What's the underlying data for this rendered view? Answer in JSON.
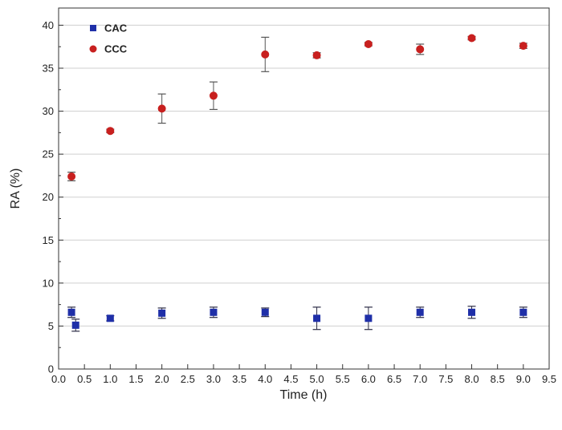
{
  "chart_data": {
    "type": "scatter",
    "xlabel": "Time (h)",
    "ylabel": "RA (%)",
    "xlim": [
      0.0,
      9.5
    ],
    "ylim": [
      0,
      42
    ],
    "x_ticks": [
      "0.0",
      "0.5",
      "1.0",
      "1.5",
      "2.0",
      "2.5",
      "3.0",
      "3.5",
      "4.0",
      "4.5",
      "5.0",
      "5.5",
      "6.0",
      "6.5",
      "7.0",
      "7.5",
      "8.0",
      "8.5",
      "9.0",
      "9.5"
    ],
    "y_ticks": [
      "0",
      "5",
      "10",
      "15",
      "20",
      "25",
      "30",
      "35",
      "40"
    ],
    "grid": "horizontal",
    "legend_position": "top-left",
    "series": [
      {
        "name": "CAC",
        "marker": "square",
        "color": "#1f2fa8",
        "points": [
          {
            "x": 0.25,
            "y": 6.6,
            "err": 0.6
          },
          {
            "x": 0.33,
            "y": 5.1,
            "err": 0.7
          },
          {
            "x": 1.0,
            "y": 5.9,
            "err": 0.3
          },
          {
            "x": 2.0,
            "y": 6.5,
            "err": 0.6
          },
          {
            "x": 3.0,
            "y": 6.6,
            "err": 0.6
          },
          {
            "x": 4.0,
            "y": 6.6,
            "err": 0.5
          },
          {
            "x": 5.0,
            "y": 5.9,
            "err": 1.3
          },
          {
            "x": 6.0,
            "y": 5.9,
            "err": 1.3
          },
          {
            "x": 7.0,
            "y": 6.6,
            "err": 0.6
          },
          {
            "x": 8.0,
            "y": 6.6,
            "err": 0.7
          },
          {
            "x": 9.0,
            "y": 6.6,
            "err": 0.6
          }
        ]
      },
      {
        "name": "CCC",
        "marker": "circle",
        "color": "#c8201f",
        "points": [
          {
            "x": 0.25,
            "y": 22.4,
            "err": 0.5
          },
          {
            "x": 1.0,
            "y": 27.7,
            "err": 0.2
          },
          {
            "x": 2.0,
            "y": 30.3,
            "err": 1.7
          },
          {
            "x": 3.0,
            "y": 31.8,
            "err": 1.6
          },
          {
            "x": 4.0,
            "y": 36.6,
            "err": 2.0
          },
          {
            "x": 5.0,
            "y": 36.5,
            "err": 0.3
          },
          {
            "x": 6.0,
            "y": 37.8,
            "err": 0.2
          },
          {
            "x": 7.0,
            "y": 37.2,
            "err": 0.6
          },
          {
            "x": 8.0,
            "y": 38.5,
            "err": 0.2
          },
          {
            "x": 9.0,
            "y": 37.6,
            "err": 0.3
          }
        ]
      }
    ]
  }
}
